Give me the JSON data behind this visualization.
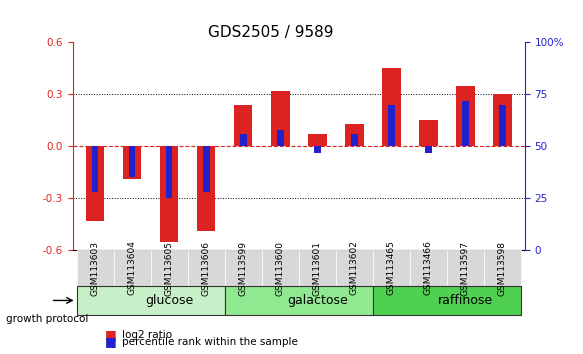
{
  "title": "GDS2505 / 9589",
  "samples": [
    "GSM113603",
    "GSM113604",
    "GSM113605",
    "GSM113606",
    "GSM113599",
    "GSM113600",
    "GSM113601",
    "GSM113602",
    "GSM113465",
    "GSM113466",
    "GSM113597",
    "GSM113598"
  ],
  "log2_ratio": [
    -0.43,
    -0.19,
    -0.55,
    -0.49,
    0.24,
    0.32,
    0.07,
    0.13,
    0.45,
    0.15,
    0.35,
    0.3
  ],
  "percentile_rank": [
    28,
    35,
    25,
    28,
    56,
    58,
    47,
    56,
    70,
    47,
    72,
    70
  ],
  "groups": [
    {
      "label": "glucose",
      "start": 0,
      "end": 4,
      "color": "#c8f0c8"
    },
    {
      "label": "galactose",
      "start": 4,
      "end": 8,
      "color": "#90e890"
    },
    {
      "label": "raffinose",
      "start": 8,
      "end": 12,
      "color": "#50d050"
    }
  ],
  "ylim_left": [
    -0.6,
    0.6
  ],
  "ylim_right": [
    0,
    100
  ],
  "yticks_left": [
    -0.6,
    -0.3,
    0.0,
    0.3,
    0.6
  ],
  "yticks_right": [
    0,
    25,
    50,
    75,
    100
  ],
  "bar_color": "#dd2222",
  "percentile_color": "#2222cc",
  "zero_line_color": "#dd2222",
  "grid_color": "#000000",
  "bg_color": "#ffffff",
  "title_fontsize": 11,
  "tick_fontsize": 7.5,
  "label_fontsize": 8,
  "group_label_fontsize": 9
}
